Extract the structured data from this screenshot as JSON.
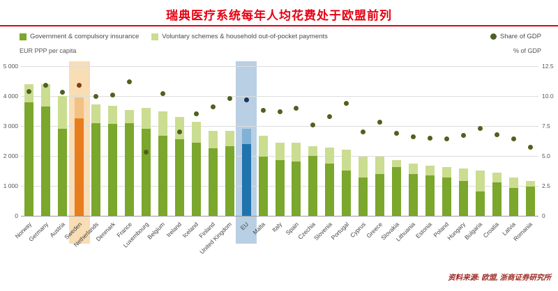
{
  "title": "瑞典医疗系统每年人均花费处于欧盟前列",
  "source": "资料来源: 欧盟, 浙商证券研究所",
  "legend": {
    "government": "Government & compulsory insurance",
    "voluntary": "Voluntary schemes & household out-of-pocket payments",
    "gdp": "Share of GDP"
  },
  "chart_data": {
    "type": "bar",
    "title": "瑞典医疗系统每年人均花费处于欧盟前列",
    "left_axis": {
      "label": "EUR PPP per capita",
      "max": 5000,
      "ticks": [
        5000,
        4000,
        3000,
        2000,
        1000,
        0
      ],
      "tick_labels": [
        "5 000",
        "4 000",
        "3 000",
        "2 000",
        "1 000",
        "0"
      ]
    },
    "right_axis": {
      "label": "% of GDP",
      "max": 12.5,
      "ticks": [
        12.5,
        10.0,
        7.5,
        5.0,
        2.5,
        0
      ],
      "tick_labels": [
        "12.5",
        "10.0",
        "7.5",
        "5.0",
        "2.5",
        "0"
      ]
    },
    "categories": [
      "Norway",
      "Germany",
      "Austria",
      "Sweden",
      "Netherlands",
      "Denmark",
      "France",
      "Luxembourg",
      "Belgium",
      "Ireland",
      "Iceland",
      "Finland",
      "United Kingdom",
      "EU",
      "Malta",
      "Italy",
      "Spain",
      "Czechia",
      "Slovenia",
      "Portugal",
      "Cyprus",
      "Greece",
      "Slovakia",
      "Lithuania",
      "Estonia",
      "Poland",
      "Hungary",
      "Bulgaria",
      "Croatia",
      "Latvia",
      "Romania"
    ],
    "series": [
      {
        "name": "Government & compulsory insurance",
        "type": "bar",
        "axis": "left",
        "values": [
          3800,
          3650,
          2900,
          3250,
          3090,
          3070,
          3100,
          2900,
          2670,
          2560,
          2440,
          2260,
          2330,
          2400,
          1980,
          1860,
          1810,
          2000,
          1740,
          1510,
          1280,
          1400,
          1630,
          1400,
          1350,
          1280,
          1160,
          810,
          1120,
          930,
          980
        ]
      },
      {
        "name": "Voluntary schemes & household out-of-pocket payments",
        "type": "bar",
        "axis": "left",
        "values": [
          600,
          750,
          1100,
          700,
          630,
          600,
          430,
          700,
          820,
          740,
          700,
          580,
          510,
          500,
          690,
          580,
          630,
          330,
          540,
          700,
          700,
          580,
          230,
          340,
          320,
          350,
          420,
          700,
          320,
          350,
          180
        ]
      },
      {
        "name": "Share of GDP",
        "type": "scatter",
        "axis": "right",
        "values": [
          10.4,
          10.9,
          10.3,
          10.9,
          10.0,
          10.1,
          11.2,
          5.3,
          10.2,
          7.0,
          8.5,
          9.1,
          9.8,
          9.7,
          8.8,
          8.7,
          9.0,
          7.6,
          8.3,
          9.4,
          7.0,
          7.8,
          6.9,
          6.6,
          6.5,
          6.4,
          6.7,
          7.3,
          6.8,
          6.4,
          5.7
        ]
      }
    ],
    "highlights": {
      "Sweden": "orange",
      "EU": "blue"
    },
    "grid": true,
    "legend_position": "top"
  },
  "colors": {
    "title_red": "#e60012",
    "bar_government": "#7aa72c",
    "bar_voluntary": "#cbdd90",
    "bar_orange_government": "#e87d1e",
    "bar_orange_voluntary": "#f3c183",
    "bar_blue_government": "#1f74ad",
    "bar_blue_voluntary": "#7fb2d6",
    "gdp_dot": "#4f611f",
    "dot_orange": "#8a3c10",
    "dot_blue": "#17365d",
    "band_orange": "#f8ddb5",
    "band_blue": "#b9cfe4",
    "source_red": "#9e2b25"
  }
}
